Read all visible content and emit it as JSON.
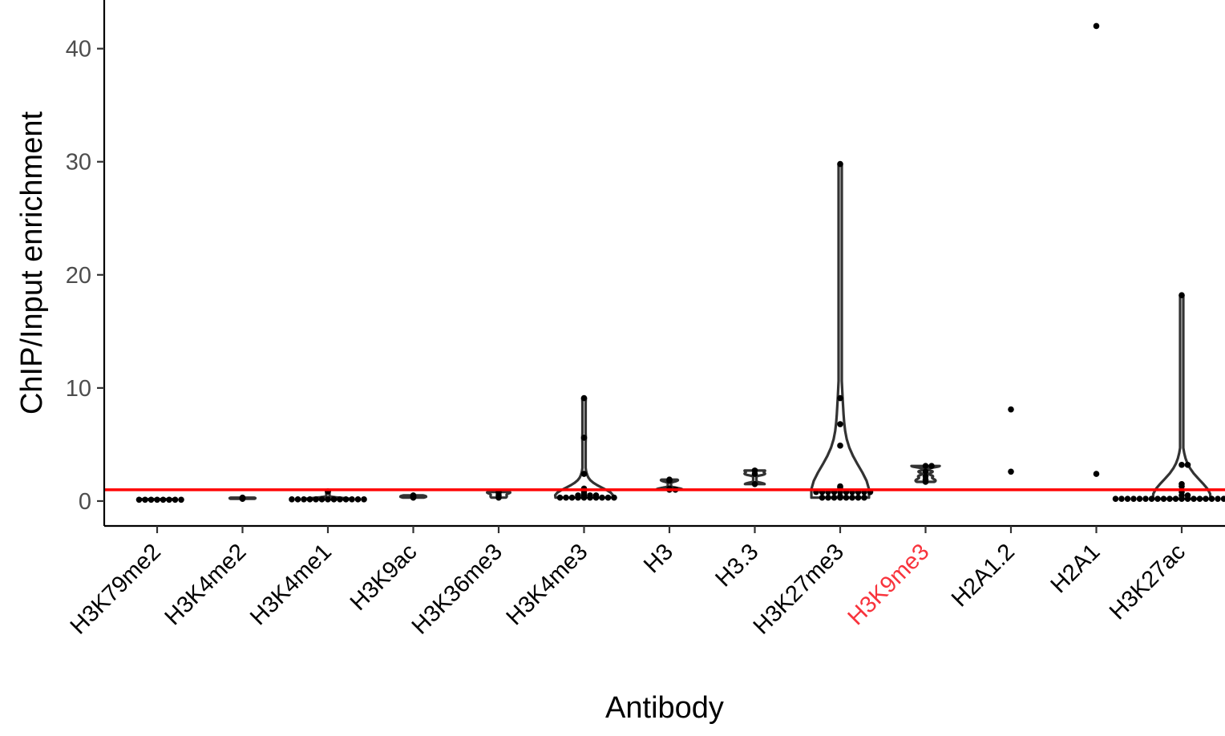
{
  "chart_data": {
    "type": "violin",
    "xlabel": "Antibody",
    "ylabel": "ChIP/Input enrichment",
    "ylim": [
      -2.2,
      44.3
    ],
    "yticks": [
      0,
      10,
      20,
      30,
      40
    ],
    "grid": false,
    "legend": "none",
    "reference_line": {
      "y": 1,
      "color": "#ff0000"
    },
    "highlight_color": "#f8333c",
    "categories": [
      {
        "label": "H3K79me2",
        "highlight": false,
        "points": [
          0.12,
          0.12,
          0.12,
          0.12,
          0.12,
          0.12,
          0.12,
          0.12
        ]
      },
      {
        "label": "H3K4me2",
        "highlight": false,
        "points": [
          0.2,
          0.25,
          0.3,
          0.22,
          0.28
        ]
      },
      {
        "label": "H3K4me1",
        "highlight": false,
        "points": [
          0.15,
          0.15,
          0.15,
          0.15,
          0.15,
          0.15,
          0.15,
          0.15,
          0.15,
          0.15,
          0.15,
          0.15,
          0.15,
          0.85
        ]
      },
      {
        "label": "H3K9ac",
        "highlight": false,
        "points": [
          0.3,
          0.45,
          0.5,
          0.4,
          0.35
        ]
      },
      {
        "label": "H3K36me3",
        "highlight": false,
        "points": [
          0.3,
          0.5,
          0.75,
          0.8
        ]
      },
      {
        "label": "H3K4me3",
        "highlight": false,
        "points": [
          9.1,
          5.6,
          2.4,
          1.1,
          0.9,
          0.7,
          0.5,
          0.5,
          0.3,
          0.3,
          0.3,
          0.3,
          0.3,
          0.3,
          0.3,
          0.3,
          0.3,
          0.3,
          0.5,
          0.5
        ]
      },
      {
        "label": "H3",
        "highlight": false,
        "points": [
          1.9,
          1.8,
          1.1,
          1.0,
          1.0
        ]
      },
      {
        "label": "H3.3",
        "highlight": false,
        "points": [
          2.7,
          2.4,
          1.5
        ]
      },
      {
        "label": "H3K27me3",
        "highlight": false,
        "points": [
          29.8,
          9.1,
          6.8,
          4.9,
          1.3,
          1.2,
          1.0,
          0.8,
          0.8,
          0.8,
          0.8,
          0.8,
          0.8,
          0.8,
          0.8,
          0.8,
          0.8,
          0.4,
          0.3,
          0.3,
          0.3,
          0.3,
          0.3,
          0.3,
          0.3,
          0.3
        ]
      },
      {
        "label": "H3K9me3",
        "highlight": true,
        "points": [
          3.1,
          3.1,
          2.6,
          2.2,
          1.9,
          1.7
        ]
      },
      {
        "label": "H2A1.2",
        "highlight": false,
        "points": [
          8.1,
          2.6
        ]
      },
      {
        "label": "H2A1",
        "highlight": false,
        "points": [
          42.0,
          2.4
        ]
      },
      {
        "label": "H3K27ac",
        "highlight": false,
        "points": [
          18.2,
          3.2,
          3.2,
          1.5,
          1.3,
          0.8,
          0.5,
          0.5,
          0.2,
          0.2,
          0.2,
          0.2,
          0.2,
          0.2,
          0.2,
          0.2,
          0.2,
          0.2,
          0.2,
          0.2,
          0.2,
          0.2,
          0.2,
          0.2,
          0.2,
          0.2,
          0.2,
          0.2,
          0.2,
          0.2,
          0.2
        ]
      }
    ]
  }
}
